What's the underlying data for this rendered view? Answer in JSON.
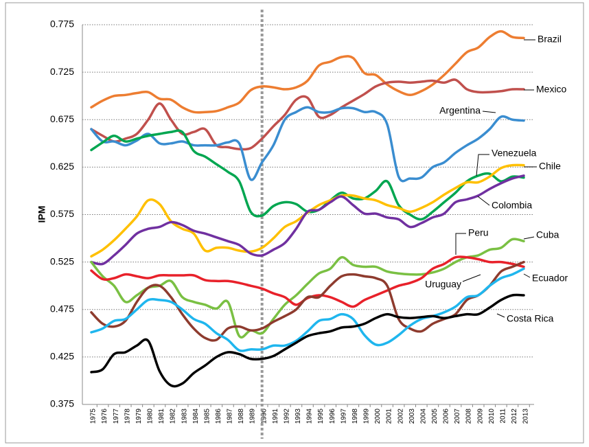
{
  "chart_data": {
    "type": "line",
    "y_label": "IPM",
    "categories": [
      "1975",
      "1976",
      "1977",
      "1978",
      "1979",
      "1980",
      "1981",
      "1982",
      "1983",
      "1984",
      "1985",
      "1986",
      "1987",
      "1988",
      "1989",
      "1990",
      "1991",
      "1992",
      "1993",
      "1994",
      "1995",
      "1996",
      "1997",
      "1998",
      "1999",
      "2000",
      "2001",
      "2002",
      "2003",
      "2004",
      "2005",
      "2006",
      "2007",
      "2008",
      "2009",
      "2010",
      "2011",
      "2012",
      "2013"
    ],
    "vline": "1990",
    "ylim": [
      0.375,
      0.775
    ],
    "yticks": [
      0.375,
      0.425,
      0.475,
      0.525,
      0.575,
      0.625,
      0.675,
      0.725,
      0.775
    ],
    "grid": true,
    "series": [
      {
        "name": "Brazil",
        "color": "#ED7D31",
        "values": [
          0.688,
          0.695,
          0.7,
          0.701,
          0.703,
          0.704,
          0.697,
          0.696,
          0.688,
          0.683,
          0.683,
          0.684,
          0.688,
          0.693,
          0.706,
          0.71,
          0.709,
          0.707,
          0.709,
          0.716,
          0.732,
          0.736,
          0.741,
          0.74,
          0.724,
          0.722,
          0.712,
          0.705,
          0.701,
          0.705,
          0.712,
          0.722,
          0.734,
          0.746,
          0.751,
          0.762,
          0.768,
          0.762,
          0.761
        ]
      },
      {
        "name": "Mexico",
        "color": "#C0504D",
        "values": [
          0.665,
          0.658,
          0.652,
          0.655,
          0.66,
          0.675,
          0.692,
          0.675,
          0.66,
          0.662,
          0.665,
          0.648,
          0.646,
          0.644,
          0.645,
          0.655,
          0.668,
          0.68,
          0.696,
          0.698,
          0.678,
          0.68,
          0.688,
          0.695,
          0.702,
          0.71,
          0.714,
          0.715,
          0.714,
          0.715,
          0.716,
          0.714,
          0.717,
          0.707,
          0.704,
          0.704,
          0.705,
          0.707,
          0.707
        ]
      },
      {
        "name": "Argentina",
        "color": "#3A8DD0",
        "values": [
          0.665,
          0.652,
          0.652,
          0.648,
          0.653,
          0.66,
          0.65,
          0.65,
          0.652,
          0.648,
          0.648,
          0.648,
          0.651,
          0.65,
          0.612,
          0.63,
          0.648,
          0.675,
          0.683,
          0.688,
          0.683,
          0.683,
          0.687,
          0.687,
          0.683,
          0.683,
          0.67,
          0.615,
          0.613,
          0.614,
          0.625,
          0.63,
          0.64,
          0.648,
          0.655,
          0.665,
          0.678,
          0.675,
          0.674
        ]
      },
      {
        "name": "Venezuela",
        "color": "#00A650",
        "values": [
          0.643,
          0.651,
          0.658,
          0.652,
          0.655,
          0.658,
          0.66,
          0.662,
          0.662,
          0.642,
          0.636,
          0.628,
          0.62,
          0.61,
          0.578,
          0.574,
          0.584,
          0.588,
          0.586,
          0.578,
          0.58,
          0.59,
          0.598,
          0.592,
          0.592,
          0.6,
          0.61,
          0.585,
          0.575,
          0.57,
          0.578,
          0.588,
          0.598,
          0.61,
          0.616,
          0.618,
          0.61,
          0.615,
          0.614
        ]
      },
      {
        "name": "Chile",
        "color": "#FFC000",
        "values": [
          0.531,
          0.538,
          0.548,
          0.56,
          0.573,
          0.59,
          0.586,
          0.568,
          0.56,
          0.555,
          0.537,
          0.54,
          0.54,
          0.537,
          0.536,
          0.54,
          0.55,
          0.562,
          0.568,
          0.577,
          0.585,
          0.59,
          0.595,
          0.595,
          0.592,
          0.59,
          0.585,
          0.582,
          0.578,
          0.582,
          0.588,
          0.596,
          0.603,
          0.609,
          0.609,
          0.615,
          0.624,
          0.627,
          0.627
        ]
      },
      {
        "name": "Colombia",
        "color": "#7030A0",
        "values": [
          0.525,
          0.523,
          0.532,
          0.543,
          0.555,
          0.56,
          0.562,
          0.567,
          0.564,
          0.558,
          0.555,
          0.551,
          0.547,
          0.543,
          0.534,
          0.532,
          0.538,
          0.545,
          0.56,
          0.578,
          0.58,
          0.588,
          0.594,
          0.585,
          0.576,
          0.576,
          0.572,
          0.57,
          0.562,
          0.566,
          0.572,
          0.576,
          0.588,
          0.591,
          0.595,
          0.602,
          0.608,
          0.613,
          0.616
        ]
      },
      {
        "name": "Peru",
        "color": "#7AC043",
        "values": [
          0.525,
          0.51,
          0.5,
          0.483,
          0.49,
          0.498,
          0.5,
          0.505,
          0.488,
          0.483,
          0.48,
          0.476,
          0.483,
          0.447,
          0.453,
          0.45,
          0.465,
          0.48,
          0.49,
          0.502,
          0.513,
          0.518,
          0.53,
          0.522,
          0.52,
          0.52,
          0.515,
          0.513,
          0.512,
          0.512,
          0.514,
          0.518,
          0.525,
          0.53,
          0.532,
          0.538,
          0.54,
          0.549,
          0.547
        ]
      },
      {
        "name": "Cuba",
        "color": "#E8212A",
        "values": [
          0.516,
          0.507,
          0.508,
          0.512,
          0.51,
          0.508,
          0.511,
          0.511,
          0.511,
          0.511,
          0.506,
          0.505,
          0.505,
          0.503,
          0.5,
          0.497,
          0.492,
          0.488,
          0.48,
          0.487,
          0.49,
          0.488,
          0.483,
          0.478,
          0.485,
          0.49,
          0.495,
          0.5,
          0.503,
          0.508,
          0.518,
          0.523,
          0.53,
          0.53,
          0.528,
          0.525,
          0.525,
          0.523,
          0.52
        ]
      },
      {
        "name": "Uruguay",
        "color": "#8E3B2E",
        "values": [
          0.472,
          0.46,
          0.457,
          0.463,
          0.483,
          0.498,
          0.5,
          0.488,
          0.47,
          0.455,
          0.445,
          0.443,
          0.455,
          0.457,
          0.453,
          0.455,
          0.462,
          0.468,
          0.475,
          0.488,
          0.488,
          0.5,
          0.51,
          0.512,
          0.51,
          0.508,
          0.5,
          0.465,
          0.455,
          0.452,
          0.46,
          0.465,
          0.47,
          0.485,
          0.49,
          0.5,
          0.515,
          0.52,
          0.525
        ]
      },
      {
        "name": "Ecuador",
        "color": "#1FB6EE",
        "values": [
          0.451,
          0.455,
          0.463,
          0.465,
          0.475,
          0.485,
          0.485,
          0.483,
          0.475,
          0.465,
          0.46,
          0.45,
          0.443,
          0.432,
          0.433,
          0.433,
          0.437,
          0.437,
          0.442,
          0.452,
          0.463,
          0.465,
          0.47,
          0.465,
          0.448,
          0.438,
          0.44,
          0.448,
          0.458,
          0.465,
          0.468,
          0.472,
          0.478,
          0.488,
          0.49,
          0.5,
          0.508,
          0.512,
          0.518
        ]
      },
      {
        "name": "Costa Rica",
        "color": "#000000",
        "values": [
          0.409,
          0.412,
          0.428,
          0.43,
          0.437,
          0.442,
          0.41,
          0.395,
          0.397,
          0.408,
          0.416,
          0.425,
          0.43,
          0.428,
          0.423,
          0.423,
          0.426,
          0.433,
          0.44,
          0.447,
          0.45,
          0.452,
          0.456,
          0.457,
          0.46,
          0.466,
          0.47,
          0.467,
          0.466,
          0.467,
          0.468,
          0.466,
          0.468,
          0.47,
          0.47,
          0.477,
          0.485,
          0.49,
          0.49
        ]
      }
    ]
  }
}
